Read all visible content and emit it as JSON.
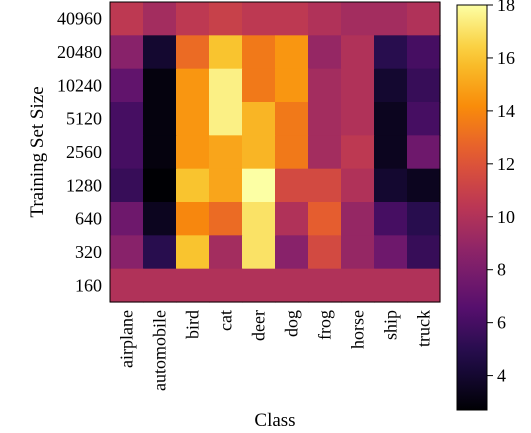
{
  "chart_data": {
    "type": "heatmap",
    "xlabel": "Class",
    "ylabel": "Training Set Size",
    "x_categories": [
      "airplane",
      "automobile",
      "bird",
      "cat",
      "deer",
      "dog",
      "frog",
      "horse",
      "ship",
      "truck"
    ],
    "y_categories": [
      "40960",
      "20480",
      "10240",
      "5120",
      "2560",
      "1280",
      "640",
      "320",
      "160"
    ],
    "values": [
      [
        10.5,
        9.5,
        10.5,
        11.0,
        10.5,
        10.5,
        10.0,
        9.5,
        9.5,
        10.0
      ],
      [
        8.5,
        4.0,
        13.0,
        16.0,
        13.5,
        14.5,
        9.0,
        10.0,
        5.0,
        6.0
      ],
      [
        7.0,
        3.0,
        14.5,
        17.5,
        13.5,
        14.5,
        9.5,
        10.0,
        4.0,
        5.5
      ],
      [
        6.0,
        3.0,
        14.5,
        17.5,
        15.5,
        13.5,
        9.5,
        10.0,
        3.5,
        6.0
      ],
      [
        6.0,
        3.0,
        14.5,
        15.0,
        15.5,
        13.5,
        9.5,
        10.5,
        3.5,
        7.5
      ],
      [
        5.5,
        2.7,
        16.0,
        15.0,
        18.0,
        11.5,
        11.5,
        10.0,
        4.0,
        3.5
      ],
      [
        7.5,
        3.5,
        14.0,
        13.0,
        17.0,
        10.0,
        12.5,
        9.0,
        6.0,
        5.0
      ],
      [
        8.5,
        5.0,
        16.0,
        9.5,
        17.0,
        8.5,
        11.5,
        9.0,
        7.5,
        5.5
      ],
      [
        10.0,
        10.0,
        10.0,
        10.0,
        10.0,
        10.0,
        10.0,
        10.0,
        10.0,
        10.0
      ]
    ],
    "colorbar": {
      "min": 2.7,
      "max": 18.0,
      "ticks": [
        4,
        6,
        8,
        10,
        12,
        14,
        16,
        18
      ]
    },
    "colormap": "inferno"
  }
}
